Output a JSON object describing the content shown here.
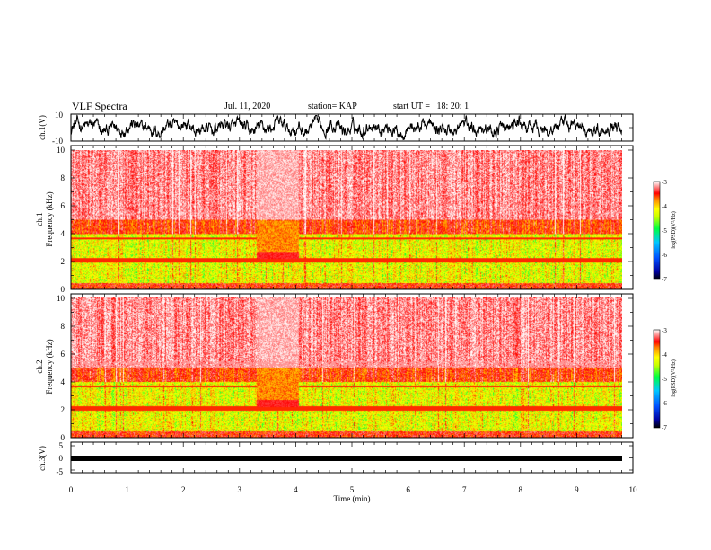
{
  "header": {
    "title": "VLF Spectra",
    "date": "Jul. 11, 2020",
    "station": "station= KAP",
    "start": "start UT =   18: 20: 1"
  },
  "chart_data": [
    {
      "type": "line",
      "panel": "ch1-waveform",
      "ylabel": "ch.1(V)",
      "yticks": [
        "10",
        "-10"
      ],
      "ylim": [
        -10,
        10
      ],
      "xlim": [
        0,
        10
      ],
      "description_values": {
        "data_end_min": 9.8,
        "typical_amplitude": 6
      }
    },
    {
      "type": "heatmap",
      "panel": "ch1-spectrogram",
      "ylabel": "Frequency (kHz)",
      "channel_label": "ch.1",
      "yticks": [
        "0",
        "2",
        "4",
        "6",
        "8",
        "10"
      ],
      "ylim": [
        0,
        10
      ],
      "xlim": [
        0,
        10
      ],
      "colorbar": {
        "label": "log(PSD)(V²/Hz)",
        "ticks": [
          "-3",
          "-4",
          "-5",
          "-6",
          "-7"
        ],
        "range": [
          -7,
          -3
        ]
      }
    },
    {
      "type": "heatmap",
      "panel": "ch2-spectrogram",
      "ylabel": "Frequency (kHz)",
      "channel_label": "ch.2",
      "yticks": [
        "0",
        "2",
        "4",
        "6",
        "8",
        "10"
      ],
      "ylim": [
        0,
        10
      ],
      "xlim": [
        0,
        10
      ],
      "colorbar": {
        "label": "log(PSD)(V²/Hz)",
        "ticks": [
          "-3",
          "-4",
          "-5",
          "-6",
          "-7"
        ],
        "range": [
          -7,
          -3
        ]
      }
    },
    {
      "type": "line",
      "panel": "ch3-waveform",
      "ylabel": "ch.3(V)",
      "yticks": [
        "5",
        "0",
        "-5"
      ],
      "ylim": [
        -5,
        5
      ],
      "xlim": [
        0,
        10
      ],
      "xlabel": "Time (min)",
      "xticks": [
        "0",
        "1",
        "2",
        "3",
        "4",
        "5",
        "6",
        "7",
        "8",
        "9",
        "10"
      ]
    }
  ]
}
